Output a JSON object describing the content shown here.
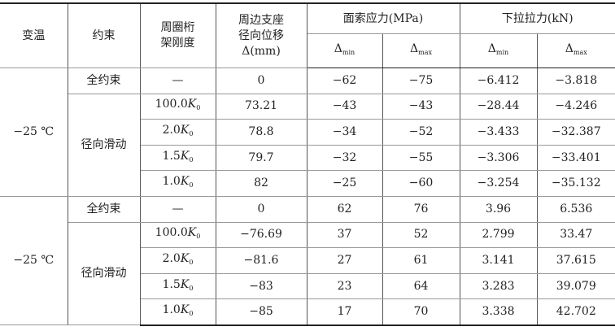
{
  "table": {
    "header": {
      "temperature": "变温",
      "constraint": "约束",
      "stiffness": [
        "周圈桁",
        "架刚度"
      ],
      "displacement": [
        "周边支座",
        "径向位移",
        "Δ(mm)"
      ],
      "cable_stress": "面索应力(MPa)",
      "pull_force": "下拉拉力(kN)",
      "sub": [
        {
          "sym": "Δ",
          "sub": "min"
        },
        {
          "sym": "Δ",
          "sub": "max"
        },
        {
          "sym": "Δ",
          "sub": "min"
        },
        {
          "sym": "Δ",
          "sub": "max"
        }
      ]
    },
    "groups": [
      {
        "temperature": "−25 ℃",
        "constraints": [
          {
            "name": "全约束",
            "rows": [
              [
                "—",
                "0",
                "−62",
                "−75",
                "−6.412",
                "−3.818"
              ]
            ]
          },
          {
            "name": "径向滑动",
            "rows": [
              [
                {
                  "num": "100.0",
                  "var": "K",
                  "sub": "0"
                },
                "73.21",
                "−43",
                "−43",
                "−28.44",
                "−4.246"
              ],
              [
                {
                  "num": "2.0",
                  "var": "K",
                  "sub": "0"
                },
                "78.8",
                "−34",
                "−52",
                "−3.433",
                "−32.387"
              ],
              [
                {
                  "num": "1.5",
                  "var": "K",
                  "sub": "0"
                },
                "79.7",
                "−32",
                "−55",
                "−3.306",
                "−33.401"
              ],
              [
                {
                  "num": "1.0",
                  "var": "K",
                  "sub": "0"
                },
                "82",
                "−25",
                "−60",
                "−3.254",
                "−35.132"
              ]
            ]
          }
        ]
      },
      {
        "temperature": "−25 ℃",
        "constraints": [
          {
            "name": "全约束",
            "rows": [
              [
                "—",
                "0",
                "62",
                "76",
                "3.96",
                "6.536"
              ]
            ]
          },
          {
            "name": "径向滑动",
            "rows": [
              [
                {
                  "num": "100.0",
                  "var": "K",
                  "sub": "0"
                },
                "−76.69",
                "37",
                "52",
                "2.799",
                "33.47"
              ],
              [
                {
                  "num": "2.0",
                  "var": "K",
                  "sub": "0"
                },
                "−81.6",
                "27",
                "61",
                "3.141",
                "37.615"
              ],
              [
                {
                  "num": "1.5",
                  "var": "K",
                  "sub": "0"
                },
                "−83",
                "23",
                "64",
                "3.283",
                "39.079"
              ],
              [
                {
                  "num": "1.0",
                  "var": "K",
                  "sub": "0"
                },
                "−85",
                "17",
                "70",
                "3.338",
                "42.702"
              ]
            ]
          }
        ]
      }
    ]
  }
}
